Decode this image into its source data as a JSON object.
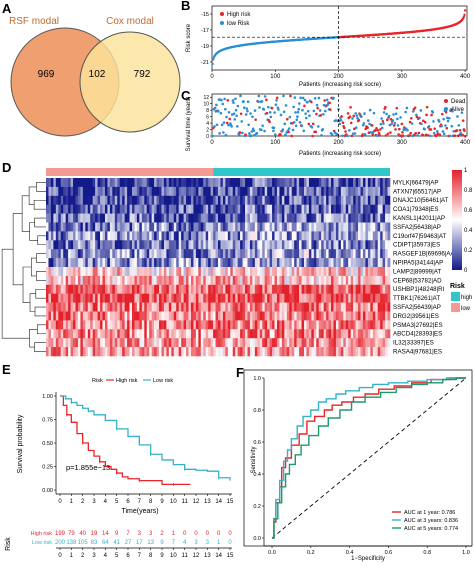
{
  "colors": {
    "rsf": "#f0a070",
    "cox": "#fbe39a",
    "high": "#e8262a",
    "low": "#2a8fd4",
    "hm_low": "#131a8a",
    "hm_mid": "#ffffff",
    "hm_high": "#e4212b",
    "risk_high": "#31c6c9",
    "risk_low": "#f39a94",
    "roc1": "#e8262a",
    "roc3": "#35b2c9",
    "roc5": "#1b9a6b"
  },
  "panels": {
    "A": "A",
    "B": "B",
    "C": "C",
    "D": "D",
    "E": "E",
    "F": "F"
  },
  "chart_data": [
    {
      "panel": "A",
      "type": "venn",
      "sets": [
        {
          "name": "RSF modal",
          "only": 969
        },
        {
          "name": "Cox modal",
          "only": 792
        }
      ],
      "intersection": 102
    },
    {
      "panel": "B",
      "type": "scatter",
      "xlabel": "Patients (increasing risk socre)",
      "ylabel": "Risk score",
      "xticks": [
        "0",
        "100",
        "200",
        "300",
        "400"
      ],
      "yticks": [
        "-21",
        "-19",
        "-17",
        "-15"
      ],
      "xlim": [
        0,
        403
      ],
      "ylim": [
        -22,
        -14
      ],
      "cutoff_x": 200,
      "cutoff_y": -17.9,
      "legend": [
        "High risk",
        "low Risk"
      ],
      "legend_position": "top-left",
      "n": 400
    },
    {
      "panel": "C",
      "type": "scatter",
      "xlabel": "Patients (increasing risk socre)",
      "ylabel": "Survival time (years)",
      "xticks": [
        "0",
        "100",
        "200",
        "300",
        "400"
      ],
      "yticks": [
        "0",
        "2",
        "4",
        "6",
        "8",
        "10",
        "12"
      ],
      "xlim": [
        0,
        403
      ],
      "ylim": [
        0,
        13
      ],
      "cutoff_x": 200,
      "legend": [
        "Dead",
        "Alive"
      ],
      "legend_position": "top-right"
    },
    {
      "panel": "D",
      "type": "heatmap",
      "rows": [
        "MYLK|66479|AP",
        "ATXN7|65517|AP",
        "DNAJC10|56461|AT",
        "COA1|79348|ES",
        "KANSL1|42011|AP",
        "SSFA2|56438|AP",
        "C19orf47|59463|AT",
        "CDIPT|35973|ES",
        "RASGEF1B|69696|AA",
        "NPIPA5|34144|AP",
        "LAMP2|89999|AT",
        "CEP68|53782|AD",
        "USHBP1|48248|RI",
        "TTBK1|76261|AT",
        "SSFA2|56439|AP",
        "DRG2|39561|ES",
        "PSMA3|27692|ES",
        "ABCD4|28393|ES",
        "IL32|33397|ES",
        "RASA4|97681|ES"
      ],
      "colorbar_ticks": [
        "1",
        "0.8",
        "0.6",
        "0.4",
        "0.2",
        "0"
      ],
      "annotation_title": "Risk",
      "annotation_legend": [
        "high",
        "low"
      ]
    },
    {
      "panel": "E",
      "type": "line",
      "ylabel": "Survival probability",
      "xlabel": "Time(years)",
      "legend_title": "Risk",
      "legend": [
        "High risk",
        "Low risk"
      ],
      "xticks": [
        "0",
        "1",
        "2",
        "3",
        "4",
        "5",
        "6",
        "7",
        "8",
        "9",
        "10",
        "11",
        "12",
        "13",
        "14",
        "15"
      ],
      "yticks": [
        "0.00",
        "0.25",
        "0.50",
        "0.75",
        "1.00"
      ],
      "xlim": [
        0,
        15
      ],
      "ylim": [
        0,
        1
      ],
      "pvalue_text": "p=1.855e−13",
      "series": [
        {
          "name": "High risk",
          "x": [
            0,
            0.3,
            0.6,
            1,
            1.5,
            2,
            2.5,
            3,
            3.5,
            4,
            4.5,
            5,
            5.5,
            6,
            7,
            8,
            9,
            10,
            11.5
          ],
          "y": [
            1.0,
            0.9,
            0.8,
            0.72,
            0.6,
            0.5,
            0.42,
            0.36,
            0.3,
            0.25,
            0.22,
            0.18,
            0.14,
            0.12,
            0.1,
            0.1,
            0.06,
            0.06,
            0.06
          ]
        },
        {
          "name": "Low risk",
          "x": [
            0,
            0.5,
            1,
            1.5,
            2,
            2.5,
            3,
            4,
            5,
            6,
            7,
            8,
            9,
            10,
            11,
            12,
            13,
            14,
            15
          ],
          "y": [
            1.0,
            0.97,
            0.93,
            0.9,
            0.87,
            0.84,
            0.8,
            0.74,
            0.65,
            0.57,
            0.48,
            0.38,
            0.32,
            0.27,
            0.22,
            0.21,
            0.2,
            0.13,
            0.1
          ]
        }
      ],
      "risk_table": {
        "title": "Risk",
        "rows": [
          {
            "name": "High risk",
            "values": [
              "199",
              "79",
              "40",
              "19",
              "14",
              "9",
              "7",
              "3",
              "3",
              "2",
              "1",
              "0",
              "0",
              "0",
              "0",
              "0"
            ]
          },
          {
            "name": "Low risk",
            "values": [
              "200",
              "138",
              "105",
              "83",
              "64",
              "41",
              "27",
              "17",
              "13",
              "9",
              "7",
              "4",
              "3",
              "3",
              "1",
              "0"
            ]
          }
        ]
      }
    },
    {
      "panel": "F",
      "type": "line",
      "xlabel": "1−Specificity",
      "ylabel": "Sensitivity",
      "xticks": [
        "0.0",
        "0.2",
        "0.4",
        "0.6",
        "0.8",
        "1.0"
      ],
      "yticks": [
        "0.0",
        "0.2",
        "0.4",
        "0.6",
        "0.8",
        "1.0"
      ],
      "xlim": [
        0,
        1
      ],
      "ylim": [
        0,
        1
      ],
      "legend_position": "bottom-right",
      "series": [
        {
          "name": "AUC at 1 year: 0.786",
          "x": [
            0,
            0.01,
            0.02,
            0.04,
            0.05,
            0.07,
            0.1,
            0.14,
            0.18,
            0.22,
            0.27,
            0.31,
            0.36,
            0.42,
            0.48,
            0.55,
            0.63,
            0.72,
            0.82,
            0.92,
            1.0
          ],
          "y": [
            0,
            0.1,
            0.22,
            0.32,
            0.44,
            0.5,
            0.58,
            0.65,
            0.73,
            0.76,
            0.8,
            0.83,
            0.85,
            0.88,
            0.9,
            0.93,
            0.95,
            0.97,
            0.99,
            1.0,
            1.0
          ]
        },
        {
          "name": "AUC at 3 years: 0.836",
          "x": [
            0,
            0.01,
            0.02,
            0.04,
            0.06,
            0.08,
            0.1,
            0.13,
            0.16,
            0.2,
            0.24,
            0.28,
            0.33,
            0.38,
            0.45,
            0.52,
            0.6,
            0.7,
            0.8,
            0.9,
            1.0
          ],
          "y": [
            0,
            0.12,
            0.24,
            0.36,
            0.48,
            0.55,
            0.62,
            0.7,
            0.76,
            0.8,
            0.85,
            0.87,
            0.9,
            0.92,
            0.94,
            0.96,
            0.97,
            0.98,
            0.99,
            1.0,
            1.0
          ]
        },
        {
          "name": "AUC at 5 years: 0.774",
          "x": [
            0,
            0.01,
            0.03,
            0.05,
            0.07,
            0.09,
            0.12,
            0.15,
            0.19,
            0.24,
            0.29,
            0.35,
            0.41,
            0.48,
            0.56,
            0.64,
            0.72,
            0.8,
            0.88,
            0.95,
            1.0
          ],
          "y": [
            0,
            0.12,
            0.22,
            0.32,
            0.4,
            0.46,
            0.52,
            0.58,
            0.64,
            0.7,
            0.75,
            0.8,
            0.85,
            0.88,
            0.91,
            0.94,
            0.96,
            0.97,
            0.99,
            1.0,
            1.0
          ]
        }
      ]
    }
  ]
}
